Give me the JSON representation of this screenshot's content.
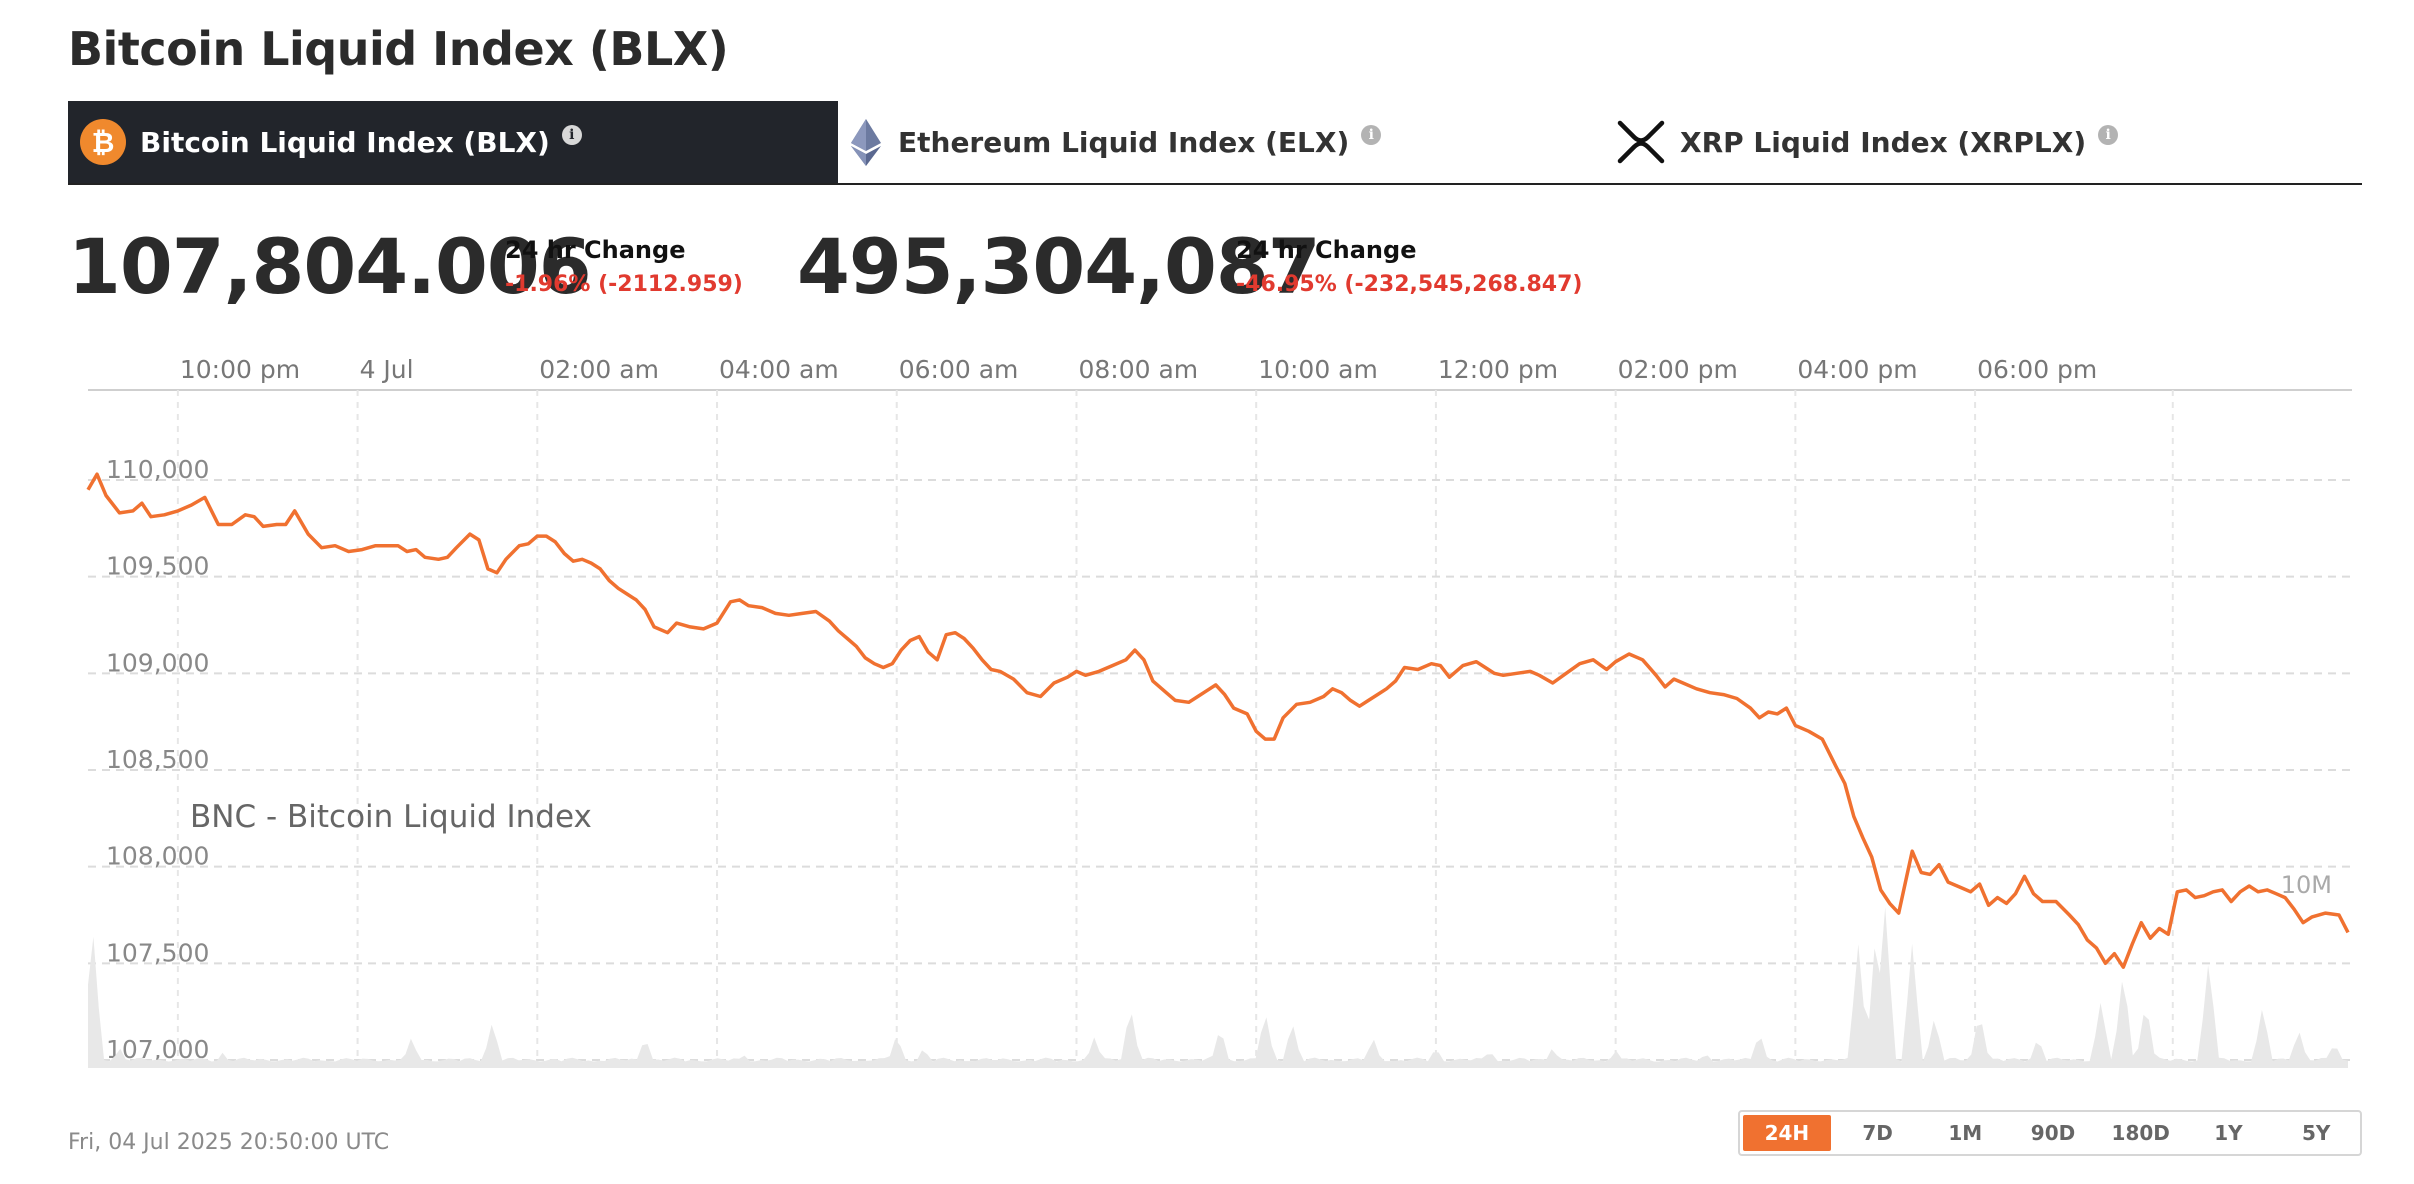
{
  "page_title": "Bitcoin Liquid Index (BLX)",
  "tabs": [
    {
      "label": "Bitcoin Liquid Index (BLX)",
      "icon": "bitcoin-icon",
      "active": true
    },
    {
      "label": "Ethereum Liquid Index (ELX)",
      "icon": "ethereum-icon",
      "active": false
    },
    {
      "label": "XRP Liquid Index (XRPLX)",
      "icon": "xrp-icon",
      "active": false
    }
  ],
  "info_glyph": "i",
  "price": {
    "value": "107,804.006",
    "change_label": "24 hr Change",
    "change_value": "-1.96% (-2112.959)"
  },
  "volume": {
    "value": "495,304,087",
    "change_label": "24 hr Change",
    "change_value": "-46.95% (-232,545,268.847)"
  },
  "colors": {
    "line": "#f07130",
    "negative": "#e13a2f",
    "volume_fill": "#e8e8e8",
    "active_tab_bg": "#22252b",
    "bitcoin_orange": "#f0892d"
  },
  "chart_data": {
    "type": "line",
    "series_label": "BNC - Bitcoin Liquid Index",
    "volume_label": "10M",
    "x_tick_labels": [
      "10:00 pm",
      "4 Jul",
      "02:00 am",
      "04:00 am",
      "06:00 am",
      "08:00 am",
      "10:00 am",
      "12:00 pm",
      "02:00 pm",
      "04:00 pm",
      "06:00 pm"
    ],
    "x_tick_hours": [
      1,
      3,
      5,
      7,
      9,
      11,
      13,
      15,
      17,
      19,
      21
    ],
    "x_range_hours": [
      -0.1,
      24.1
    ],
    "y_ticks": [
      107000,
      107500,
      108000,
      108500,
      109000,
      109500,
      110000
    ],
    "y_tick_labels": [
      "107,000",
      "107,500",
      "108,000",
      "108,500",
      "109,000",
      "109,500",
      "110,000"
    ],
    "ylim": [
      107000,
      110200
    ],
    "price_points": [
      [
        0,
        109950
      ],
      [
        0.1,
        110030
      ],
      [
        0.2,
        109920
      ],
      [
        0.35,
        109830
      ],
      [
        0.5,
        109840
      ],
      [
        0.6,
        109880
      ],
      [
        0.7,
        109810
      ],
      [
        0.85,
        109820
      ],
      [
        1.0,
        109840
      ],
      [
        1.15,
        109870
      ],
      [
        1.3,
        109910
      ],
      [
        1.45,
        109770
      ],
      [
        1.6,
        109770
      ],
      [
        1.75,
        109820
      ],
      [
        1.85,
        109810
      ],
      [
        1.95,
        109760
      ],
      [
        2.1,
        109770
      ],
      [
        2.2,
        109770
      ],
      [
        2.3,
        109840
      ],
      [
        2.45,
        109720
      ],
      [
        2.6,
        109650
      ],
      [
        2.75,
        109660
      ],
      [
        2.9,
        109630
      ],
      [
        3.05,
        109640
      ],
      [
        3.2,
        109660
      ],
      [
        3.35,
        109660
      ],
      [
        3.45,
        109660
      ],
      [
        3.55,
        109630
      ],
      [
        3.65,
        109640
      ],
      [
        3.75,
        109600
      ],
      [
        3.9,
        109590
      ],
      [
        4.0,
        109600
      ],
      [
        4.1,
        109650
      ],
      [
        4.25,
        109720
      ],
      [
        4.35,
        109690
      ],
      [
        4.45,
        109540
      ],
      [
        4.55,
        109520
      ],
      [
        4.65,
        109590
      ],
      [
        4.8,
        109660
      ],
      [
        4.9,
        109670
      ],
      [
        5.0,
        109710
      ],
      [
        5.1,
        109710
      ],
      [
        5.2,
        109680
      ],
      [
        5.3,
        109620
      ],
      [
        5.4,
        109580
      ],
      [
        5.5,
        109590
      ],
      [
        5.6,
        109570
      ],
      [
        5.7,
        109540
      ],
      [
        5.8,
        109480
      ],
      [
        5.9,
        109440
      ],
      [
        6.0,
        109410
      ],
      [
        6.1,
        109380
      ],
      [
        6.2,
        109330
      ],
      [
        6.3,
        109240
      ],
      [
        6.45,
        109210
      ],
      [
        6.55,
        109260
      ],
      [
        6.7,
        109240
      ],
      [
        6.85,
        109230
      ],
      [
        7.0,
        109260
      ],
      [
        7.15,
        109370
      ],
      [
        7.25,
        109380
      ],
      [
        7.35,
        109350
      ],
      [
        7.5,
        109340
      ],
      [
        7.65,
        109310
      ],
      [
        7.8,
        109300
      ],
      [
        7.95,
        109310
      ],
      [
        8.1,
        109320
      ],
      [
        8.25,
        109270
      ],
      [
        8.35,
        109220
      ],
      [
        8.45,
        109180
      ],
      [
        8.55,
        109140
      ],
      [
        8.65,
        109080
      ],
      [
        8.75,
        109050
      ],
      [
        8.85,
        109030
      ],
      [
        8.95,
        109050
      ],
      [
        9.05,
        109120
      ],
      [
        9.15,
        109170
      ],
      [
        9.25,
        109190
      ],
      [
        9.35,
        109110
      ],
      [
        9.45,
        109070
      ],
      [
        9.55,
        109200
      ],
      [
        9.65,
        109210
      ],
      [
        9.75,
        109180
      ],
      [
        9.85,
        109130
      ],
      [
        9.95,
        109070
      ],
      [
        10.05,
        109020
      ],
      [
        10.15,
        109010
      ],
      [
        10.3,
        108970
      ],
      [
        10.45,
        108900
      ],
      [
        10.6,
        108880
      ],
      [
        10.75,
        108950
      ],
      [
        10.9,
        108980
      ],
      [
        11.0,
        109010
      ],
      [
        11.1,
        108990
      ],
      [
        11.25,
        109010
      ],
      [
        11.4,
        109040
      ],
      [
        11.55,
        109070
      ],
      [
        11.65,
        109120
      ],
      [
        11.75,
        109070
      ],
      [
        11.85,
        108960
      ],
      [
        12.0,
        108900
      ],
      [
        12.1,
        108860
      ],
      [
        12.25,
        108850
      ],
      [
        12.35,
        108880
      ],
      [
        12.45,
        108910
      ],
      [
        12.55,
        108940
      ],
      [
        12.65,
        108890
      ],
      [
        12.75,
        108820
      ],
      [
        12.9,
        108790
      ],
      [
        13.0,
        108700
      ],
      [
        13.1,
        108660
      ],
      [
        13.2,
        108660
      ],
      [
        13.3,
        108770
      ],
      [
        13.45,
        108840
      ],
      [
        13.6,
        108850
      ],
      [
        13.75,
        108880
      ],
      [
        13.85,
        108920
      ],
      [
        13.95,
        108900
      ],
      [
        14.05,
        108860
      ],
      [
        14.15,
        108830
      ],
      [
        14.25,
        108860
      ],
      [
        14.35,
        108890
      ],
      [
        14.45,
        108920
      ],
      [
        14.55,
        108960
      ],
      [
        14.65,
        109030
      ],
      [
        14.8,
        109020
      ],
      [
        14.95,
        109050
      ],
      [
        15.05,
        109040
      ],
      [
        15.15,
        108980
      ],
      [
        15.3,
        109040
      ],
      [
        15.45,
        109060
      ],
      [
        15.55,
        109030
      ],
      [
        15.65,
        109000
      ],
      [
        15.75,
        108990
      ],
      [
        15.9,
        109000
      ],
      [
        16.05,
        109010
      ],
      [
        16.15,
        108990
      ],
      [
        16.3,
        108950
      ],
      [
        16.45,
        109000
      ],
      [
        16.6,
        109050
      ],
      [
        16.75,
        109070
      ],
      [
        16.9,
        109020
      ],
      [
        17.0,
        109060
      ],
      [
        17.15,
        109100
      ],
      [
        17.3,
        109070
      ],
      [
        17.45,
        108990
      ],
      [
        17.55,
        108930
      ],
      [
        17.65,
        108970
      ],
      [
        17.75,
        108950
      ],
      [
        17.9,
        108920
      ],
      [
        18.05,
        108900
      ],
      [
        18.2,
        108890
      ],
      [
        18.35,
        108870
      ],
      [
        18.5,
        108820
      ],
      [
        18.6,
        108770
      ],
      [
        18.7,
        108800
      ],
      [
        18.8,
        108790
      ],
      [
        18.9,
        108820
      ],
      [
        19.0,
        108730
      ],
      [
        19.15,
        108700
      ],
      [
        19.3,
        108660
      ],
      [
        19.45,
        108520
      ],
      [
        19.55,
        108430
      ],
      [
        19.65,
        108260
      ],
      [
        19.75,
        108150
      ],
      [
        19.85,
        108050
      ],
      [
        19.95,
        107880
      ],
      [
        20.05,
        107810
      ],
      [
        20.15,
        107760
      ],
      [
        20.3,
        108080
      ],
      [
        20.4,
        107970
      ],
      [
        20.5,
        107960
      ],
      [
        20.6,
        108010
      ],
      [
        20.7,
        107920
      ],
      [
        20.85,
        107890
      ],
      [
        20.95,
        107870
      ],
      [
        21.05,
        107910
      ],
      [
        21.15,
        107800
      ],
      [
        21.25,
        107840
      ],
      [
        21.35,
        107810
      ],
      [
        21.45,
        107860
      ],
      [
        21.55,
        107950
      ],
      [
        21.65,
        107860
      ],
      [
        21.75,
        107820
      ],
      [
        21.9,
        107820
      ],
      [
        22.05,
        107750
      ],
      [
        22.15,
        107700
      ],
      [
        22.25,
        107620
      ],
      [
        22.35,
        107580
      ],
      [
        22.45,
        107500
      ],
      [
        22.55,
        107550
      ],
      [
        22.65,
        107480
      ],
      [
        22.75,
        107600
      ],
      [
        22.85,
        107710
      ],
      [
        22.95,
        107630
      ],
      [
        23.05,
        107680
      ],
      [
        23.15,
        107650
      ],
      [
        23.25,
        107870
      ],
      [
        23.35,
        107880
      ],
      [
        23.45,
        107840
      ],
      [
        23.55,
        107850
      ],
      [
        23.65,
        107870
      ],
      [
        23.75,
        107880
      ],
      [
        23.85,
        107820
      ],
      [
        23.95,
        107870
      ],
      [
        24.05,
        107900
      ],
      [
        24.15,
        107870
      ],
      [
        24.25,
        107880
      ],
      [
        24.35,
        107860
      ],
      [
        24.45,
        107840
      ],
      [
        24.55,
        107780
      ],
      [
        24.65,
        107710
      ],
      [
        24.75,
        107740
      ],
      [
        24.9,
        107760
      ],
      [
        25.05,
        107750
      ],
      [
        25.15,
        107660
      ]
    ],
    "volume_peaks": [
      [
        0.05,
        0.55
      ],
      [
        0.35,
        0.08
      ],
      [
        1.5,
        0.06
      ],
      [
        3.6,
        0.12
      ],
      [
        4.5,
        0.18
      ],
      [
        6.2,
        0.12
      ],
      [
        7.3,
        0.05
      ],
      [
        9.0,
        0.13
      ],
      [
        9.3,
        0.08
      ],
      [
        11.2,
        0.12
      ],
      [
        11.6,
        0.24
      ],
      [
        12.6,
        0.16
      ],
      [
        13.1,
        0.22
      ],
      [
        13.4,
        0.18
      ],
      [
        14.3,
        0.12
      ],
      [
        15.0,
        0.08
      ],
      [
        15.6,
        0.07
      ],
      [
        16.3,
        0.08
      ],
      [
        17.0,
        0.07
      ],
      [
        18.0,
        0.06
      ],
      [
        18.6,
        0.14
      ],
      [
        19.7,
        0.48
      ],
      [
        19.9,
        0.55
      ],
      [
        20.0,
        0.62
      ],
      [
        20.3,
        0.48
      ],
      [
        20.55,
        0.2
      ],
      [
        21.05,
        0.22
      ],
      [
        21.7,
        0.12
      ],
      [
        22.4,
        0.26
      ],
      [
        22.65,
        0.38
      ],
      [
        22.9,
        0.26
      ],
      [
        23.6,
        0.42
      ],
      [
        24.2,
        0.24
      ],
      [
        24.6,
        0.15
      ],
      [
        25.0,
        0.1
      ]
    ]
  },
  "footer": {
    "date": "Fri, 04 Jul 2025 20:50:00 UTC",
    "ranges": [
      "24H",
      "7D",
      "1M",
      "90D",
      "180D",
      "1Y",
      "5Y"
    ],
    "active_range": "24H"
  }
}
